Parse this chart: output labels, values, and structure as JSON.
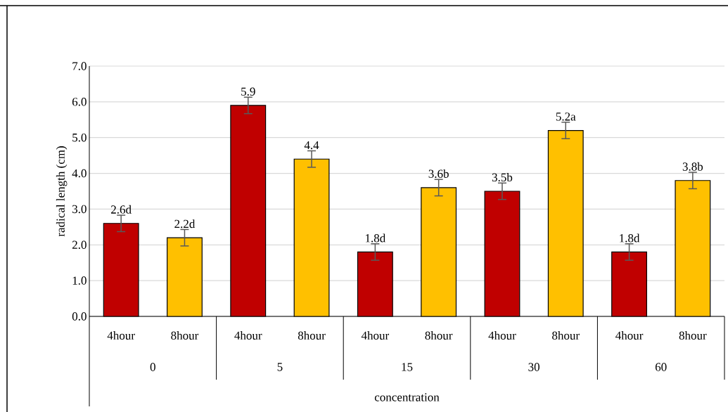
{
  "chart_data": {
    "type": "bar",
    "xlabel": "concentration",
    "ylabel": "radical length (cm)",
    "categories": [
      "4hour",
      "8hour",
      "4hour",
      "8hour",
      "4hour",
      "8hour",
      "4hour",
      "8hour",
      "4hour",
      "8hour"
    ],
    "values": [
      2.6,
      2.2,
      5.9,
      4.4,
      1.8,
      3.6,
      3.5,
      5.2,
      1.8,
      3.8
    ],
    "colors": [
      "#c00000",
      "#ffc000",
      "#c00000",
      "#ffc000",
      "#c00000",
      "#ffc000",
      "#c00000",
      "#ffc000",
      "#c00000",
      "#ffc000"
    ],
    "errors": [
      0.23,
      0.23,
      0.23,
      0.23,
      0.23,
      0.23,
      0.23,
      0.23,
      0.23,
      0.23
    ],
    "value_labels": [
      "2.6d",
      "2.2d",
      "5.9",
      "4.4",
      "1.8d",
      "3.6b",
      "3.5b",
      "5.2a",
      "1.8d",
      "3.8b"
    ],
    "annotations": [
      "0",
      "5",
      "15",
      "30",
      "60"
    ],
    "ylim": [
      0,
      7
    ],
    "yticks": [
      {
        "value": 0,
        "label": "0.0"
      },
      {
        "value": 1,
        "label": "1.0"
      },
      {
        "value": 2,
        "label": "2.0"
      },
      {
        "value": 3,
        "label": "3.0"
      },
      {
        "value": 4,
        "label": "4.0"
      },
      {
        "value": 5,
        "label": "5.0"
      },
      {
        "value": 6,
        "label": "6.0"
      },
      {
        "value": 7,
        "label": "7.0"
      }
    ],
    "grid": "y"
  }
}
